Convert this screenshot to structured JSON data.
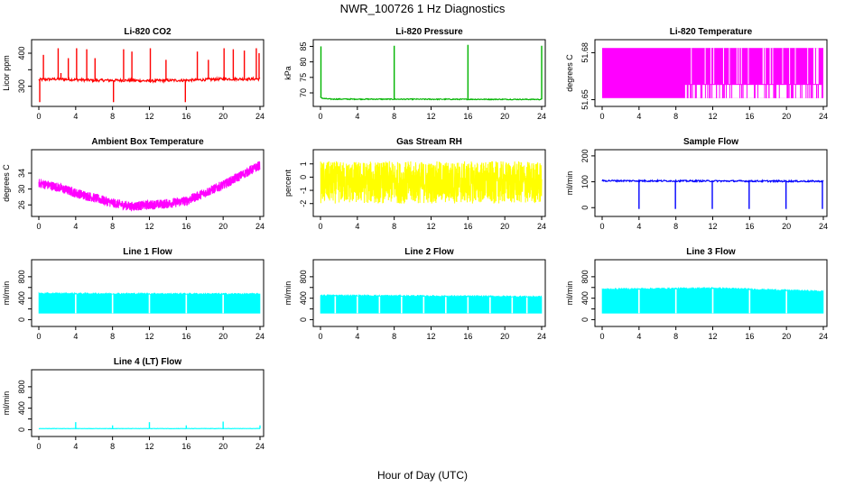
{
  "figure": {
    "title": "NWR_100726  1 Hz Diagnostics",
    "xlabel": "Hour of Day (UTC)"
  },
  "chart_data": [
    {
      "type": "line",
      "title": "Li-820 CO2",
      "ylabel": "Licor ppm",
      "color": "#ff0000",
      "xlim": [
        0,
        24
      ],
      "xticks": [
        0,
        4,
        8,
        12,
        16,
        20,
        24
      ],
      "ylim": [
        250,
        430
      ],
      "yticks": [
        300,
        350,
        400
      ],
      "ytick_labels": [
        "300",
        "",
        "400"
      ],
      "baseline": {
        "x": [
          0,
          2,
          4,
          6,
          8,
          10,
          12,
          14,
          16,
          18,
          20,
          22,
          24
        ],
        "y": [
          320,
          322,
          320,
          318,
          318,
          318,
          316,
          318,
          318,
          320,
          322,
          322,
          322
        ]
      },
      "noise": 4,
      "spikes": {
        "x": [
          0.1,
          0.5,
          2.1,
          2.4,
          3.2,
          4.1,
          5.2,
          6.1,
          8.1,
          9.2,
          10.1,
          12.1,
          13.8,
          15.9,
          17.2,
          18.4,
          20.1,
          21.1,
          22.3,
          23.6,
          23.9
        ],
        "y": [
          252,
          395,
          415,
          340,
          385,
          415,
          412,
          385,
          252,
          412,
          405,
          415,
          380,
          252,
          405,
          380,
          415,
          412,
          408,
          415,
          400
        ]
      }
    },
    {
      "type": "line",
      "title": "Li-820 Pressure",
      "ylabel": "kPa",
      "color": "#00b400",
      "xlim": [
        0,
        24
      ],
      "xticks": [
        0,
        4,
        8,
        12,
        16,
        20,
        24
      ],
      "ylim": [
        66.8,
        86
      ],
      "yticks": [
        70,
        75,
        80,
        85
      ],
      "ytick_labels": [
        "70",
        "75",
        "80",
        "85"
      ],
      "baseline": {
        "x": [
          0,
          0.3,
          1,
          24
        ],
        "y": [
          68.6,
          68.2,
          68.0,
          67.9
        ]
      },
      "noise": 0.15,
      "spikes": {
        "x": [
          0.05,
          8.0,
          16.0,
          24.0
        ],
        "y": [
          85.0,
          85.2,
          85.5,
          85.2
        ]
      }
    },
    {
      "type": "line",
      "title": "Li-820 Temperature",
      "ylabel": "degrees C",
      "color": "#ff00ff",
      "xlim": [
        0,
        24
      ],
      "xticks": [
        0,
        4,
        8,
        12,
        16,
        20,
        24
      ],
      "ylim": [
        51.648,
        51.686
      ],
      "yticks": [
        51.65,
        51.68
      ],
      "ytick_labels": [
        "51.65",
        "51.68"
      ],
      "levels": [
        51.651,
        51.66,
        51.683
      ],
      "fill_band": true
    },
    {
      "type": "line",
      "title": "Ambient Box Temperature",
      "ylabel": "degrees C",
      "color": "#ff00ff",
      "xlim": [
        0,
        24
      ],
      "xticks": [
        0,
        4,
        8,
        12,
        16,
        20,
        24
      ],
      "ylim": [
        24,
        39
      ],
      "yticks": [
        26,
        30,
        34
      ],
      "ytick_labels": [
        "26",
        "30",
        "34"
      ],
      "baseline": {
        "x": [
          0,
          2,
          4,
          6,
          8,
          10,
          12,
          14,
          16,
          18,
          20,
          22,
          24
        ],
        "y": [
          31.5,
          30.5,
          29,
          27.8,
          26.5,
          25.6,
          26,
          26.3,
          27,
          29,
          31,
          33.5,
          36
        ]
      },
      "noise": 1.2
    },
    {
      "type": "line",
      "title": "Gas Stream RH",
      "ylabel": "percent",
      "color": "#ffff00",
      "xlim": [
        0,
        24
      ],
      "xticks": [
        0,
        4,
        8,
        12,
        16,
        20,
        24
      ],
      "ylim": [
        -2.7,
        1.8
      ],
      "yticks": [
        -2,
        -1,
        0,
        1
      ],
      "ytick_labels": [
        "-2",
        "-1",
        "0",
        "1"
      ],
      "baseline": {
        "x": [
          0,
          24
        ],
        "y": [
          -0.4,
          -0.4
        ]
      },
      "noise": 1.6
    },
    {
      "type": "line",
      "title": "Sample Flow",
      "ylabel": "ml/min",
      "color": "#0000ff",
      "xlim": [
        0,
        24
      ],
      "xticks": [
        0,
        4,
        8,
        12,
        16,
        20,
        24
      ],
      "ylim": [
        -20,
        210
      ],
      "yticks": [
        0,
        100,
        200
      ],
      "ytick_labels": [
        "0",
        "100",
        "200"
      ],
      "baseline": {
        "x": [
          0,
          24
        ],
        "y": [
          104,
          102
        ]
      },
      "noise": 3,
      "spikes": {
        "x": [
          4.0,
          7.95,
          11.95,
          15.95,
          19.95,
          23.9
        ],
        "y": [
          -5,
          -5,
          -5,
          -5,
          -5,
          -5
        ]
      }
    },
    {
      "type": "line",
      "title": "Line 1 Flow",
      "ylabel": "ml/min",
      "color": "#00ffff",
      "xlim": [
        0,
        24
      ],
      "xticks": [
        0,
        4,
        8,
        12,
        16,
        20,
        24
      ],
      "ylim": [
        -60,
        1050
      ],
      "yticks": [
        0,
        200,
        400,
        600,
        800
      ],
      "ytick_labels": [
        "0",
        "",
        "400",
        "",
        "800"
      ],
      "fill_band": true,
      "band_low": 120,
      "band_high": {
        "x": [
          0,
          24
        ],
        "y": [
          490,
          480
        ]
      },
      "gaps": [
        4.0,
        8.0,
        12.0,
        16.0,
        20.0
      ]
    },
    {
      "type": "line",
      "title": "Line 2 Flow",
      "ylabel": "ml/min",
      "color": "#00ffff",
      "xlim": [
        0,
        24
      ],
      "xticks": [
        0,
        4,
        8,
        12,
        16,
        20,
        24
      ],
      "ylim": [
        -60,
        1050
      ],
      "yticks": [
        0,
        200,
        400,
        600,
        800
      ],
      "ytick_labels": [
        "0",
        "",
        "400",
        "",
        "800"
      ],
      "fill_band": true,
      "band_low": 120,
      "band_high": {
        "x": [
          0,
          24
        ],
        "y": [
          455,
          430
        ]
      },
      "gaps": [
        1.6,
        4.0,
        6.4,
        8.8,
        11.2,
        13.6,
        16.0,
        18.4,
        20.8,
        22.4
      ]
    },
    {
      "type": "line",
      "title": "Line 3 Flow",
      "ylabel": "ml/min",
      "color": "#00ffff",
      "xlim": [
        0,
        24
      ],
      "xticks": [
        0,
        4,
        8,
        12,
        16,
        20,
        24
      ],
      "ylim": [
        -60,
        1050
      ],
      "yticks": [
        0,
        200,
        400,
        600,
        800
      ],
      "ytick_labels": [
        "0",
        "",
        "400",
        "",
        "800"
      ],
      "fill_band": true,
      "band_low": 120,
      "band_high": {
        "x": [
          0,
          12,
          24
        ],
        "y": [
          570,
          590,
          530
        ]
      },
      "gaps": [
        4.0,
        8.0,
        12.0,
        16.0,
        20.0
      ]
    },
    {
      "type": "line",
      "title": "Line 4 (LT) Flow",
      "ylabel": "ml/min",
      "color": "#00ffff",
      "xlim": [
        0,
        24
      ],
      "xticks": [
        0,
        4,
        8,
        12,
        16,
        20,
        24
      ],
      "ylim": [
        -60,
        1050
      ],
      "yticks": [
        0,
        200,
        400,
        600,
        800
      ],
      "ytick_labels": [
        "0",
        "",
        "400",
        "",
        "800"
      ],
      "baseline": {
        "x": [
          0,
          24
        ],
        "y": [
          20,
          20
        ]
      },
      "noise": 3,
      "spikes": {
        "x": [
          4.0,
          8.0,
          12.0,
          16.0,
          20.0,
          24.0
        ],
        "y": [
          140,
          80,
          140,
          80,
          150,
          80
        ]
      }
    }
  ]
}
